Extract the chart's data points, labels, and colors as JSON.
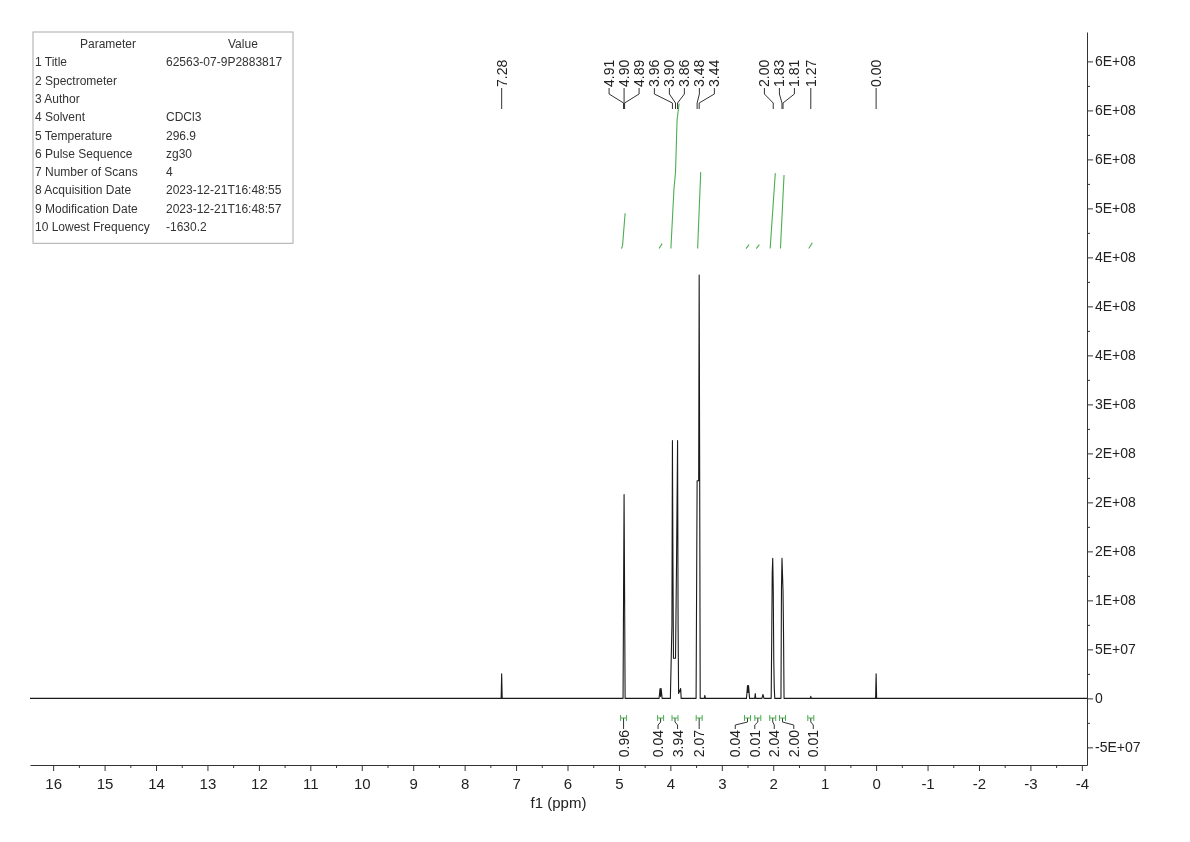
{
  "chart_data": {
    "type": "line",
    "xlabel": "f1 (ppm)",
    "xlim": [
      16.45,
      -4.1
    ],
    "xticks": [
      16,
      {
        "value": 15.5,
        "label": null
      },
      15,
      {
        "value": 14.5,
        "label": null
      },
      14,
      {
        "value": 13.5,
        "label": null
      },
      13,
      {
        "value": 12.5,
        "label": null
      },
      12,
      {
        "value": 11.5,
        "label": null
      },
      11,
      {
        "value": 10.5,
        "label": null
      },
      10,
      {
        "value": 9.5,
        "label": null
      },
      9,
      {
        "value": 8.5,
        "label": null
      },
      8,
      {
        "value": 7.5,
        "label": null
      },
      7,
      {
        "value": 6.5,
        "label": null
      },
      6,
      {
        "value": 5.5,
        "label": null
      },
      5,
      {
        "value": 4.5,
        "label": null
      },
      4,
      {
        "value": 3.5,
        "label": null
      },
      3,
      {
        "value": 2.5,
        "label": null
      },
      2,
      {
        "value": 1.5,
        "label": null
      },
      1,
      {
        "value": 0.5,
        "label": null
      },
      0,
      {
        "value": -0.5,
        "label": null
      },
      -1,
      {
        "value": -1.5,
        "label": null
      },
      -2,
      {
        "value": -2.5,
        "label": null
      },
      -3,
      {
        "value": -3.5,
        "label": null
      },
      -4
    ],
    "ylim": [
      -68000000,
      680000000
    ],
    "yticks": [
      {
        "value": 650000000,
        "label": "6E+08"
      },
      {
        "value": 625000000,
        "label": null
      },
      {
        "value": 600000000,
        "label": "6E+08"
      },
      {
        "value": 575000000,
        "label": null
      },
      {
        "value": 550000000,
        "label": "6E+08"
      },
      {
        "value": 525000000,
        "label": null
      },
      {
        "value": 500000000,
        "label": "5E+08"
      },
      {
        "value": 475000000,
        "label": null
      },
      {
        "value": 450000000,
        "label": "4E+08"
      },
      {
        "value": 425000000,
        "label": null
      },
      {
        "value": 400000000,
        "label": "4E+08"
      },
      {
        "value": 375000000,
        "label": null
      },
      {
        "value": 350000000,
        "label": "4E+08"
      },
      {
        "value": 325000000,
        "label": null
      },
      {
        "value": 300000000,
        "label": "3E+08"
      },
      {
        "value": 275000000,
        "label": null
      },
      {
        "value": 250000000,
        "label": "2E+08"
      },
      {
        "value": 225000000,
        "label": null
      },
      {
        "value": 200000000,
        "label": "2E+08"
      },
      {
        "value": 175000000,
        "label": null
      },
      {
        "value": 150000000,
        "label": "2E+08"
      },
      {
        "value": 125000000,
        "label": null
      },
      {
        "value": 100000000,
        "label": "1E+08"
      },
      {
        "value": 75000000,
        "label": null
      },
      {
        "value": 50000000,
        "label": "5E+07"
      },
      {
        "value": 25000000,
        "label": null
      },
      0,
      {
        "value": -25000000,
        "label": null
      },
      {
        "value": -50000000,
        "label": "-5E+07"
      }
    ],
    "series": [
      {
        "color": "#1a1a1a",
        "x": [
          16.45,
          7.3,
          7.29,
          7.28,
          7.27,
          5.0,
          4.92,
          4.91,
          4.9,
          4.89,
          4.88,
          4.22,
          4.2,
          4.19,
          4.18,
          4.16,
          4.0,
          3.97,
          3.96,
          3.95,
          3.94,
          3.9,
          3.88,
          3.86,
          3.85,
          3.84,
          3.8,
          3.79,
          3.5,
          3.48,
          3.45,
          3.44,
          3.43,
          3.42,
          3.34,
          3.33,
          3.32,
          2.52,
          2.5,
          2.49,
          2.48,
          2.46,
          2.36,
          2.35,
          2.34,
          2.22,
          2.2,
          2.18,
          2.04,
          2.03,
          2.02,
          2.01,
          2.0,
          1.99,
          1.98,
          1.97,
          1.85,
          1.84,
          1.83,
          1.81,
          1.8,
          1.79,
          1.28,
          1.27,
          1.26,
          0.01,
          0.0,
          -0.01,
          -4.1
        ],
        "values": [
          0,
          0,
          0,
          25000000,
          0,
          0,
          0,
          107000000,
          208000000,
          107000000,
          0,
          0,
          10000000,
          2000000,
          10000000,
          0,
          0,
          74000000,
          263000000,
          139000000,
          41000000,
          41000000,
          139000000,
          263000000,
          74000000,
          5000000,
          10000000,
          0,
          0,
          222000000,
          222000000,
          432000000,
          222000000,
          0,
          0,
          3000000,
          0,
          0,
          13000000,
          6000000,
          13000000,
          0,
          0,
          5000000,
          0,
          0,
          4000000,
          0,
          0,
          60000000,
          128000000,
          143000000,
          113000000,
          40000000,
          10000000,
          0,
          0,
          112000000,
          143000000,
          110000000,
          66000000,
          0,
          0,
          2000000,
          0,
          0,
          25000000,
          0,
          0
        ]
      },
      {
        "color": "#4caf50",
        "x": [
          4.95,
          4.93,
          4.88,
          4.5,
          4.22,
          4.16,
          4.1,
          3.99,
          3.93,
          3.9,
          3.87,
          3.83,
          3.7,
          3.47,
          3.41,
          3.0,
          2.53,
          2.47,
          2.4,
          2.33,
          2.27,
          2.25,
          2.06,
          1.96,
          1.9,
          1.86,
          1.79,
          1.5,
          1.31,
          1.24
        ],
        "values": [
          459000000,
          462000000,
          495000000,
          null,
          459000000,
          464000000,
          null,
          459000000,
          520000000,
          537000000,
          590000000,
          607000000,
          null,
          459000000,
          537000000,
          null,
          459000000,
          463000000,
          null,
          459000000,
          463000000,
          null,
          459000000,
          536000000,
          null,
          459000000,
          534000000,
          null,
          459000000,
          465000000
        ]
      }
    ],
    "annotations": [
      "Parameter\tValue",
      "1 Title\t62563-07-9P2883817",
      "2 Spectrometer",
      "3 Author",
      "4 Solvent\tCDCl3",
      "5 Temperature\t296.9",
      "6 Pulse Sequence\tzg30",
      "7 Number of Scans\t4",
      "8 Acquisition Date\t2023-12-21T16:48:55",
      "9 Modification Date\t2023-12-21T16:48:57",
      "10 Lowest Frequency\t-1630.2",
      {
        "text": "7.28",
        "x": 7.28
      },
      {
        "text": "4.91",
        "x": 4.91
      },
      {
        "text": "4.90",
        "x": 4.9
      },
      {
        "text": "4.89",
        "x": 4.89
      },
      {
        "text": "3.96",
        "x": 3.96
      },
      {
        "text": "3.90",
        "x": 3.9
      },
      {
        "text": "3.86",
        "x": 3.86
      },
      {
        "text": "3.48",
        "x": 3.48
      },
      {
        "text": "3.44",
        "x": 3.44
      },
      {
        "text": "2.00",
        "x": 2.0
      },
      {
        "text": "1.83",
        "x": 1.83
      },
      {
        "text": "1.81",
        "x": 1.81
      },
      {
        "text": "1.27",
        "x": 1.27
      },
      {
        "text": "0.00",
        "x": 0.0
      },
      {
        "text": "0.96",
        "x": 4.91
      },
      {
        "text": "0.04",
        "x": 4.19
      },
      {
        "text": "3.94",
        "x": 3.91
      },
      {
        "text": "2.07",
        "x": 3.44
      },
      {
        "text": "0.04",
        "x": 2.5
      },
      {
        "text": "0.01",
        "x": 2.3
      },
      {
        "text": "2.04",
        "x": 2.01
      },
      {
        "text": "2.00",
        "x": 1.82
      },
      {
        "text": "0.01",
        "x": 1.27
      }
    ]
  }
}
